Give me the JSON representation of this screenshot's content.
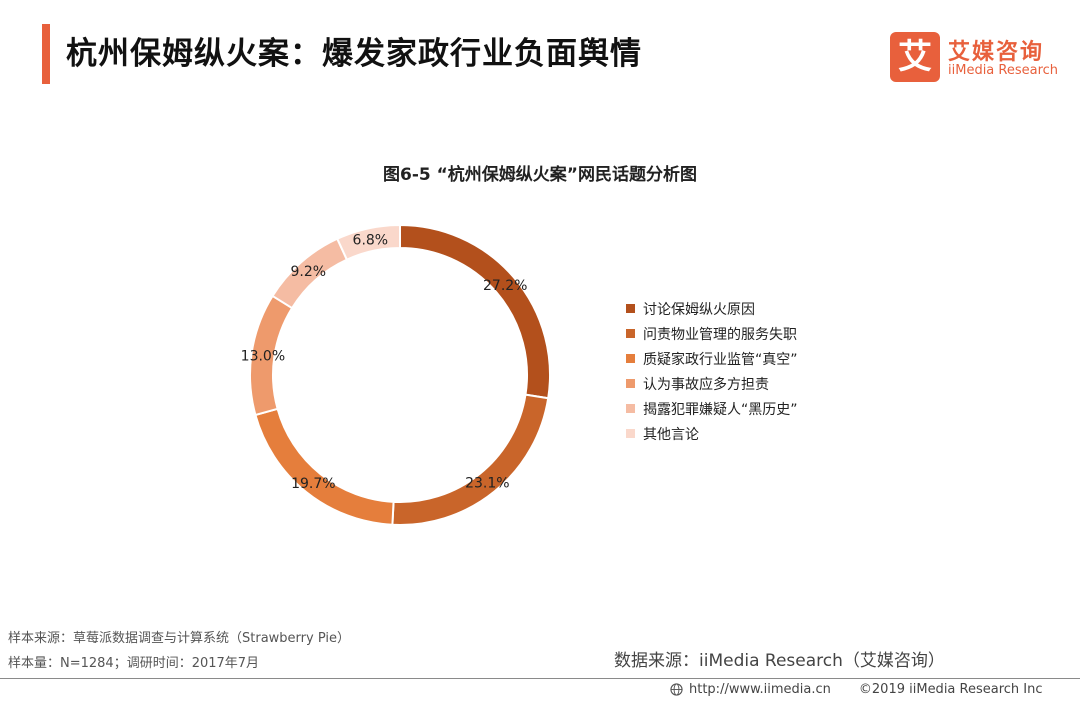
{
  "header": {
    "title": "杭州保姆纵火案：爆发家政行业负面舆情"
  },
  "logo": {
    "mark": "艾",
    "name_cn": "艾媒咨询",
    "name_en": "iiMedia Research"
  },
  "colors": {
    "accent": "#e8603c"
  },
  "chart_data": {
    "type": "pie",
    "variant": "donut",
    "title": "图6-5 “杭州保姆纵火案”网民话题分析图",
    "categories": [
      "讨论保姆纵火原因",
      "问责物业管理的服务失职",
      "质疑家政行业监管“真空”",
      "认为事故应多方担责",
      "揭露犯罪嫌疑人“黑历史”",
      "其他言论"
    ],
    "values": [
      27.2,
      23.1,
      19.7,
      13.0,
      9.2,
      6.8
    ],
    "labels": [
      "27.2%",
      "23.1%",
      "19.7%",
      "13.0%",
      "9.2%",
      "6.8%"
    ],
    "colors": [
      "#b3501c",
      "#c9652a",
      "#e57e3c",
      "#ee9a6c",
      "#f5bca3",
      "#fad8cb"
    ],
    "legend_position": "right"
  },
  "notes": {
    "sample_source": "样本来源：草莓派数据调查与计算系统（Strawberry Pie）",
    "sample_size": "样本量：N=1284；调研时间：2017年7月"
  },
  "source": "数据来源：iiMedia Research（艾媒咨询）",
  "footer": {
    "url": "http://www.iimedia.cn",
    "copyright": "©2019  iiMedia Research  Inc"
  }
}
